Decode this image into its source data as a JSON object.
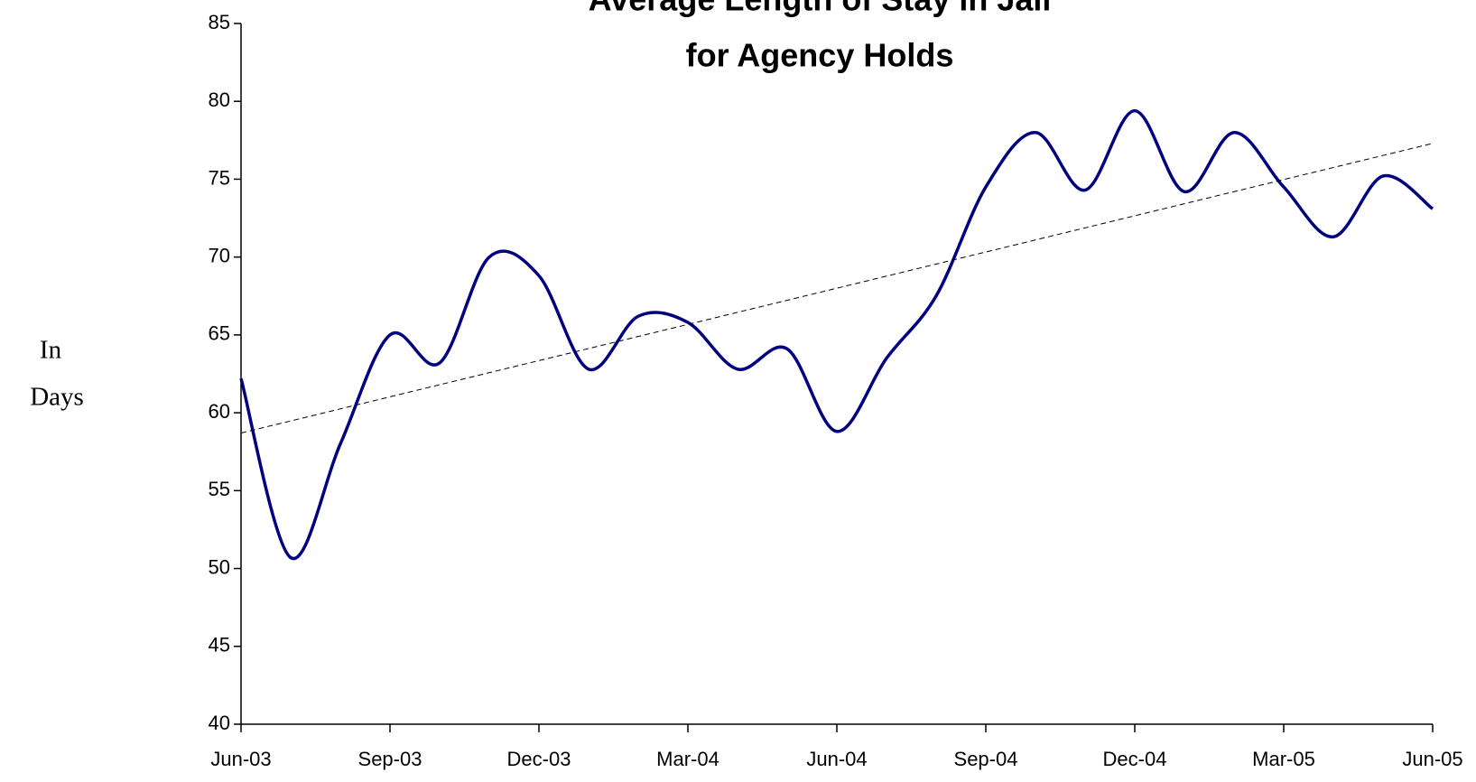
{
  "chart_data": {
    "type": "line",
    "title": [
      "Average Length of Stay in Jail",
      "for Agency Holds"
    ],
    "y_label": [
      "In",
      "Days"
    ],
    "categories": [
      "Jun-03",
      null,
      null,
      "Sep-03",
      null,
      null,
      "Dec-03",
      null,
      null,
      "Mar-04",
      null,
      null,
      "Jun-04",
      null,
      null,
      "Sep-04",
      null,
      null,
      "Dec-04",
      null,
      null,
      "Mar-05",
      null,
      null,
      "Jun-05"
    ],
    "values": [
      62.2,
      50.7,
      58.0,
      65.0,
      63.2,
      70.0,
      68.8,
      62.8,
      66.2,
      65.8,
      62.8,
      64.1,
      58.8,
      63.5,
      67.5,
      74.5,
      78.0,
      74.3,
      79.4,
      74.2,
      78.0,
      74.5,
      71.3,
      75.2,
      73.1
    ],
    "color": "#000080",
    "trend": [
      58.7,
      77.3
    ],
    "trend_color": "#000000",
    "ylim": [
      40,
      85
    ],
    "yticks": [
      40,
      45,
      50,
      55,
      60,
      65,
      70,
      75,
      80,
      85
    ],
    "grid": false
  }
}
